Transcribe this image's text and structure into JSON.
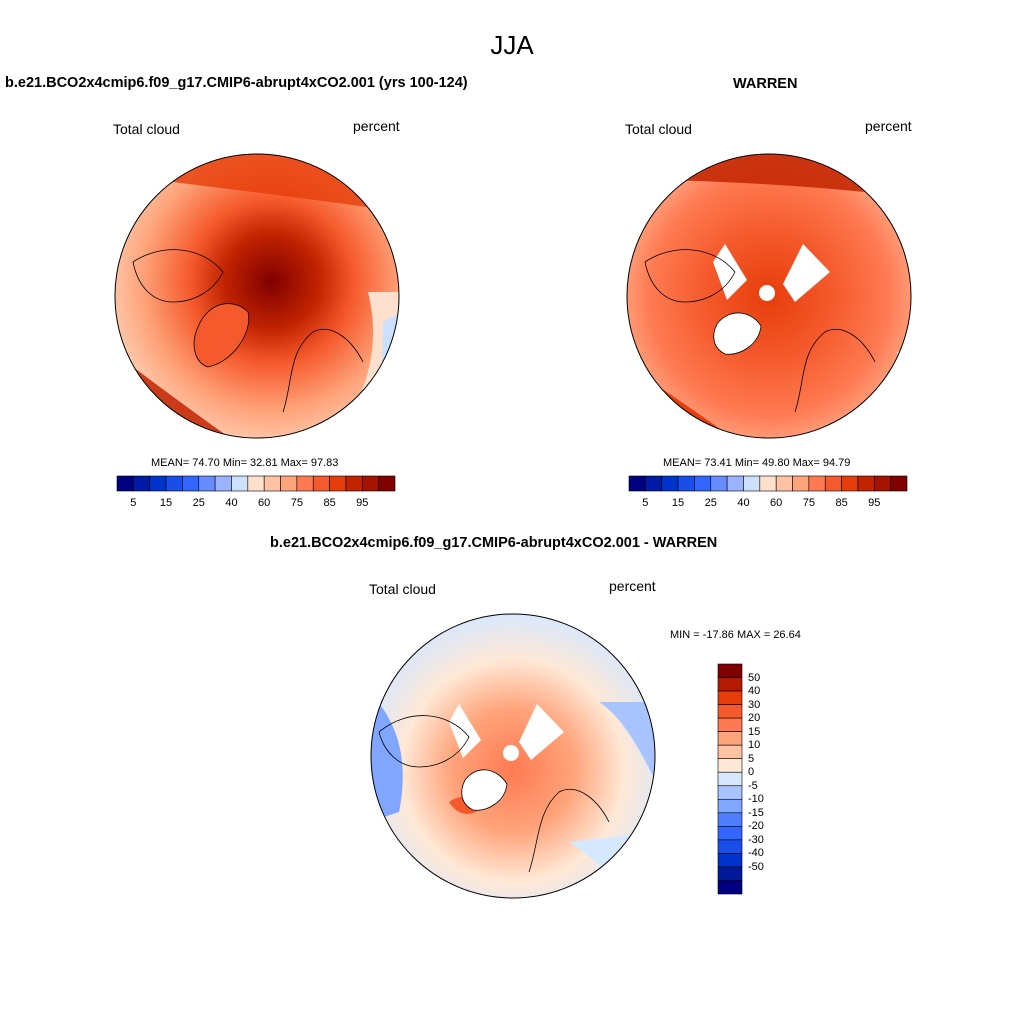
{
  "header": {
    "title": "JJA"
  },
  "palettes": {
    "absolute": [
      "#000080",
      "#0019a6",
      "#0033cc",
      "#1a4ee8",
      "#3366ff",
      "#668cff",
      "#99b3ff",
      "#cce0ff",
      "#ffe0cc",
      "#ffc2a3",
      "#ffa37a",
      "#ff7a52",
      "#f55a2c",
      "#e63d0a",
      "#c22300",
      "#a31300",
      "#800000"
    ],
    "difference": [
      "#800000",
      "#b31a00",
      "#e63d0a",
      "#f55a2c",
      "#ff7a52",
      "#ffa37a",
      "#ffc2a3",
      "#ffe8d6",
      "#d6e8ff",
      "#a8c4ff",
      "#80a6ff",
      "#4d7fff",
      "#3366ff",
      "#1a4ee8",
      "#0033cc",
      "#001a99",
      "#000080"
    ]
  },
  "chart_data": [
    {
      "type": "heatmap",
      "title": "b.e21.BCO2x4cmip6.f09_g17.CMIP6-abrupt4xCO2.001 (yrs 100-124)",
      "left_label": "Total cloud",
      "right_label": "percent",
      "projection": "north polar stereographic",
      "stats": {
        "mean": "74.70",
        "min": "32.81",
        "max": "97.83"
      },
      "stats_text": "MEAN=  74.70  Min=  32.81  Max=  97.83",
      "colorbar": {
        "orientation": "horizontal",
        "levels": [
          5,
          10,
          15,
          20,
          25,
          30,
          40,
          50,
          60,
          65,
          75,
          80,
          85,
          90,
          95,
          100
        ],
        "tick_labels": [
          "5",
          "15",
          "25",
          "40",
          "60",
          "75",
          "85",
          "95"
        ]
      }
    },
    {
      "type": "heatmap",
      "title": "WARREN",
      "left_label": "Total cloud",
      "right_label": "percent",
      "projection": "north polar stereographic",
      "stats": {
        "mean": "73.41",
        "min": "49.80",
        "max": "94.79"
      },
      "stats_text": "MEAN=  73.41  Min=  49.80  Max=  94.79",
      "colorbar": {
        "orientation": "horizontal",
        "levels": [
          5,
          10,
          15,
          20,
          25,
          30,
          40,
          50,
          60,
          65,
          75,
          80,
          85,
          90,
          95,
          100
        ],
        "tick_labels": [
          "5",
          "15",
          "25",
          "40",
          "60",
          "75",
          "85",
          "95"
        ]
      }
    },
    {
      "type": "heatmap",
      "title": "b.e21.BCO2x4cmip6.f09_g17.CMIP6-abrupt4xCO2.001 - WARREN",
      "left_label": "Total cloud",
      "right_label": "percent",
      "projection": "north polar stereographic",
      "stats": {
        "min": "-17.86",
        "max": "26.64"
      },
      "stats_text": "MIN = -17.86 MAX =  26.64",
      "colorbar": {
        "orientation": "vertical",
        "levels": [
          50,
          40,
          30,
          20,
          15,
          10,
          5,
          0,
          -5,
          -10,
          -15,
          -20,
          -30,
          -40,
          -50
        ],
        "tick_labels": [
          "50",
          "40",
          "30",
          "20",
          "15",
          "10",
          "5",
          "0",
          "-5",
          "-10",
          "-15",
          "-20",
          "-30",
          "-40",
          "-50"
        ]
      }
    }
  ]
}
